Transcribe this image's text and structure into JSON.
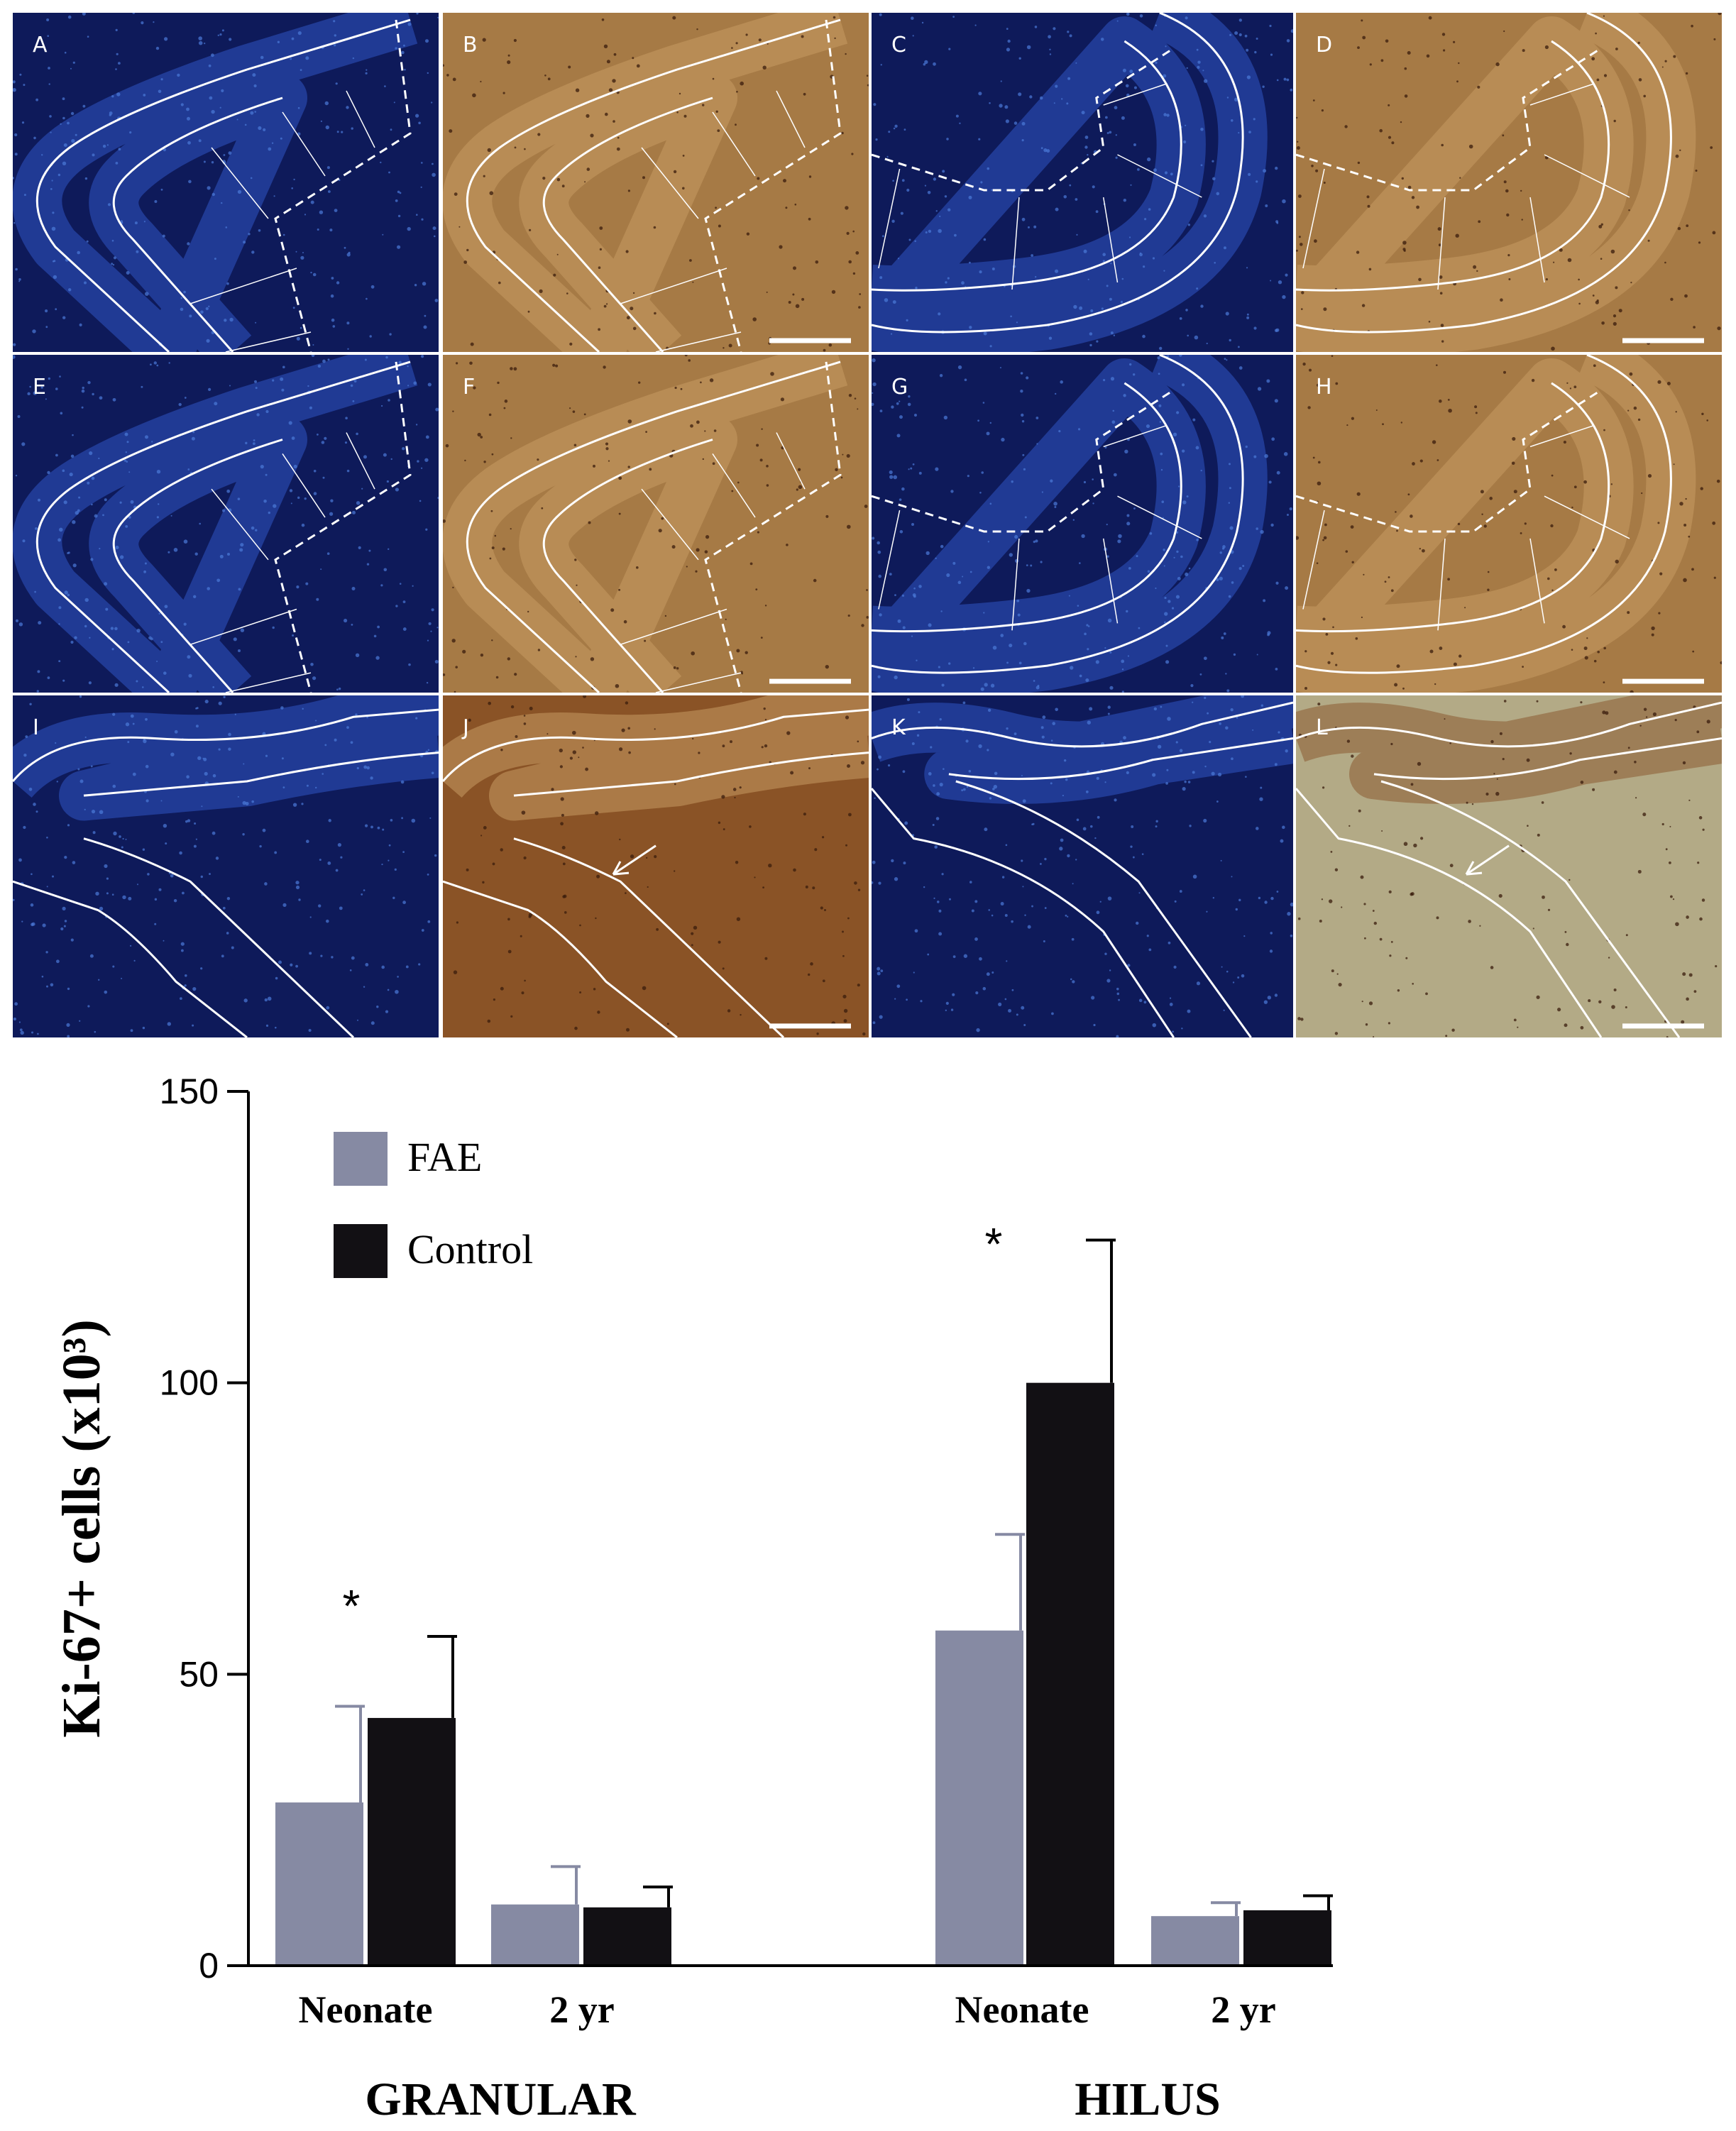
{
  "panels": [
    {
      "label": "A",
      "stain": "fluor",
      "shape": "granular"
    },
    {
      "label": "B",
      "stain": "dab",
      "shape": "granular",
      "scale_bar": true
    },
    {
      "label": "C",
      "stain": "fluor",
      "shape": "hilus"
    },
    {
      "label": "D",
      "stain": "dab",
      "shape": "hilus",
      "scale_bar": true
    },
    {
      "label": "E",
      "stain": "fluor",
      "shape": "granular"
    },
    {
      "label": "F",
      "stain": "dab",
      "shape": "granular",
      "scale_bar": true
    },
    {
      "label": "G",
      "stain": "fluor",
      "shape": "hilus"
    },
    {
      "label": "H",
      "stain": "dab",
      "shape": "hilus",
      "scale_bar": true
    },
    {
      "label": "I",
      "stain": "fluor",
      "shape": "band"
    },
    {
      "label": "J",
      "stain": "dab-dark",
      "shape": "band",
      "scale_bar": true,
      "arrow": true
    },
    {
      "label": "K",
      "stain": "fluor",
      "shape": "narrow"
    },
    {
      "label": "L",
      "stain": "dab-light",
      "shape": "narrow",
      "scale_bar": true,
      "arrow": true
    }
  ],
  "colors": {
    "fluor_bg": "#0e1a5a",
    "fluor_band": "#2f56c4",
    "dab_bg": "#a67a45",
    "dab_dark_bg": "#8a5326",
    "dab_light_bg": "#b3aa86",
    "outline": "#ffffff",
    "fae": "#868aa3",
    "control": "#121014"
  },
  "chart_data": {
    "type": "bar",
    "ylabel": "Ki-67+ cells (x10³)",
    "ylim": [
      0,
      150
    ],
    "yticks": [
      0,
      50,
      100,
      150
    ],
    "groups": [
      {
        "name": "GRANULAR",
        "categories": [
          "Neonate",
          "2 yr"
        ]
      },
      {
        "name": "HILUS",
        "categories": [
          "Neonate",
          "2 yr"
        ]
      }
    ],
    "series": [
      {
        "name": "FAE",
        "color": "#868aa3",
        "values": [
          28,
          10.5,
          57.5,
          8.5
        ],
        "errors": [
          16.5,
          6.5,
          16.5,
          2.3
        ]
      },
      {
        "name": "Control",
        "color": "#121014",
        "values": [
          42.5,
          10,
          100,
          9.5
        ],
        "errors": [
          14,
          3.5,
          24.5,
          2.5
        ]
      }
    ],
    "annotations": [
      "*",
      "*"
    ],
    "legend": "top-left"
  }
}
